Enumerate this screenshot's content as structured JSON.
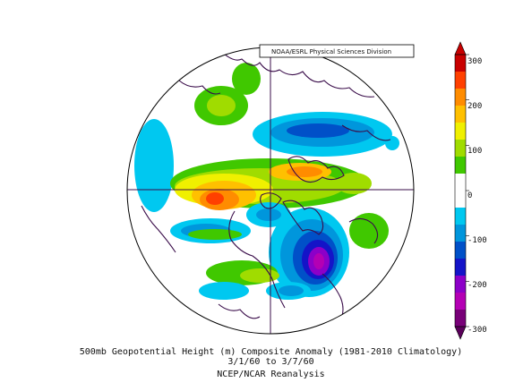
{
  "credit": "NOAA/ESRL Physical Sciences Division",
  "caption": {
    "line1": "500mb Geopotential Height (m) Composite Anomaly (1981-2010 Climatology)",
    "line2": "3/1/60  to 3/7/60",
    "line3": "NCEP/NCAR Reanalysis"
  },
  "colorbar": {
    "ticks": [
      "300",
      "200",
      "100",
      "0",
      "-100",
      "-200",
      "-300"
    ],
    "colors": [
      "#c80000",
      "#ff4000",
      "#ff8c00",
      "#ffc000",
      "#f0f000",
      "#a0dc00",
      "#40c800",
      "#ffffff",
      "#ffffff",
      "#00c8f0",
      "#0096dc",
      "#0050c8",
      "#1414c8",
      "#8c00c8",
      "#b400b4",
      "#780078"
    ],
    "range_m": [
      -300,
      300
    ]
  },
  "map": {
    "projection": "north-polar-stereographic",
    "field": "500mb geopotential height anomaly",
    "anomaly_regions": [
      {
        "sign": "negative",
        "area": "North Pacific"
      },
      {
        "sign": "positive",
        "area": "Aleutians / Gulf of Alaska"
      },
      {
        "sign": "negative",
        "area": "Siberia / North Asia"
      },
      {
        "sign": "positive",
        "area": "Arctic Ocean / Greenland"
      },
      {
        "sign": "negative",
        "area": "Europe / North Atlantic"
      },
      {
        "sign": "positive",
        "area": "Subtropical Atlantic"
      }
    ]
  }
}
